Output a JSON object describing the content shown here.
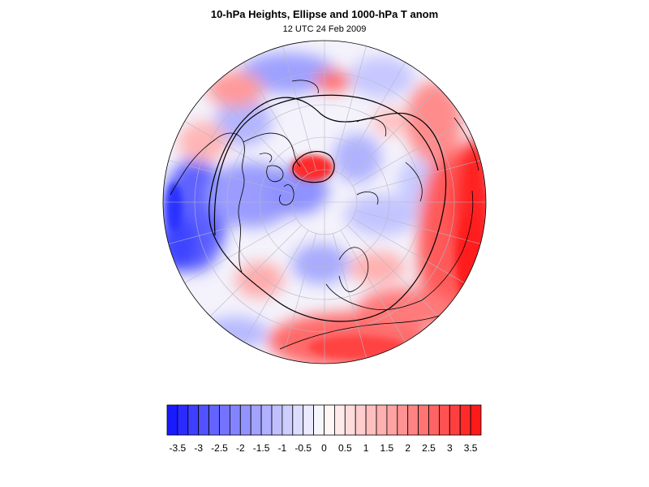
{
  "figure": {
    "title": "10-hPa Heights, Ellipse and 1000-hPa T anom",
    "subtitle": "12 UTC 24 Feb 2009"
  },
  "map": {
    "projection": "orthographic-polar-north",
    "field": "1000-hPa temperature anomaly",
    "contours": [
      "10-hPa height contours",
      "ellipse"
    ],
    "coastlines": true,
    "graticule": true
  },
  "colorbar": {
    "levels": [
      -3.75,
      -3.5,
      -3.25,
      -3,
      -2.75,
      -2.5,
      -2.25,
      -2,
      -1.75,
      -1.5,
      -1.25,
      -1,
      -0.75,
      -0.5,
      -0.25,
      0,
      0.25,
      0.5,
      0.75,
      1,
      1.25,
      1.5,
      1.75,
      2,
      2.25,
      2.5,
      2.75,
      3,
      3.25,
      3.5,
      3.75
    ],
    "tick_labels": [
      "-3.5",
      "-3",
      "-2.5",
      "-2",
      "-1.5",
      "-1",
      "-0.5",
      "0",
      "0.5",
      "1",
      "1.5",
      "2",
      "2.5",
      "3",
      "3.5"
    ],
    "colors": [
      "#1a1aff",
      "#2b2bff",
      "#3f3fff",
      "#5151ff",
      "#6363ff",
      "#7373ff",
      "#8383ff",
      "#9393ff",
      "#a2a2ff",
      "#b0b0ff",
      "#bfbfff",
      "#cdcdff",
      "#dcdcff",
      "#eaeaff",
      "#f6f6ff",
      "#fff6f6",
      "#ffeaea",
      "#ffdcdc",
      "#ffcdcd",
      "#ffbfbf",
      "#ffb0b0",
      "#ffa2a2",
      "#ff9393",
      "#ff8383",
      "#ff7373",
      "#ff6363",
      "#ff5151",
      "#ff3f3f",
      "#ff2b2b",
      "#ff1a1a"
    ]
  }
}
